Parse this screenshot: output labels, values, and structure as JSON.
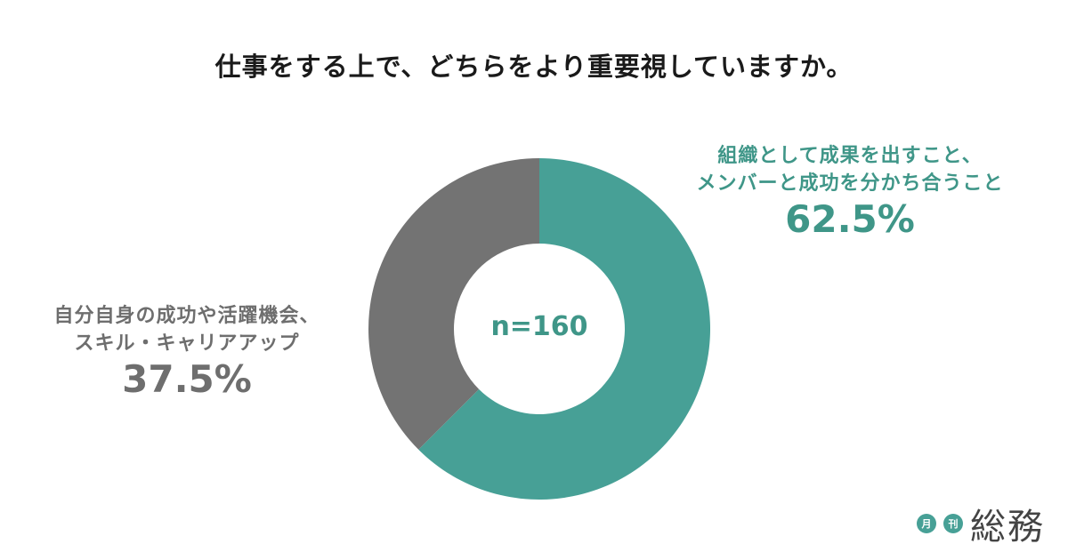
{
  "chart_data": {
    "type": "pie",
    "variant": "donut",
    "title": "仕事をする上で、どちらをより重要視していますか。",
    "center_label": "n=160",
    "slices": [
      {
        "label_lines": [
          "組織として成果を出すこと、",
          "メンバーと成功を分かち合うこと"
        ],
        "value": 62.5,
        "value_label": "62.5%",
        "color": "#47a096"
      },
      {
        "label_lines": [
          "自分自身の成功や活躍機会、",
          "スキル・キャリアアップ"
        ],
        "value": 37.5,
        "value_label": "37.5%",
        "color": "#737373"
      }
    ],
    "start_angle": "top",
    "direction": "clockwise"
  },
  "logo": {
    "badges": [
      "月",
      "刊"
    ],
    "text": "総務",
    "color": "#47a096"
  }
}
